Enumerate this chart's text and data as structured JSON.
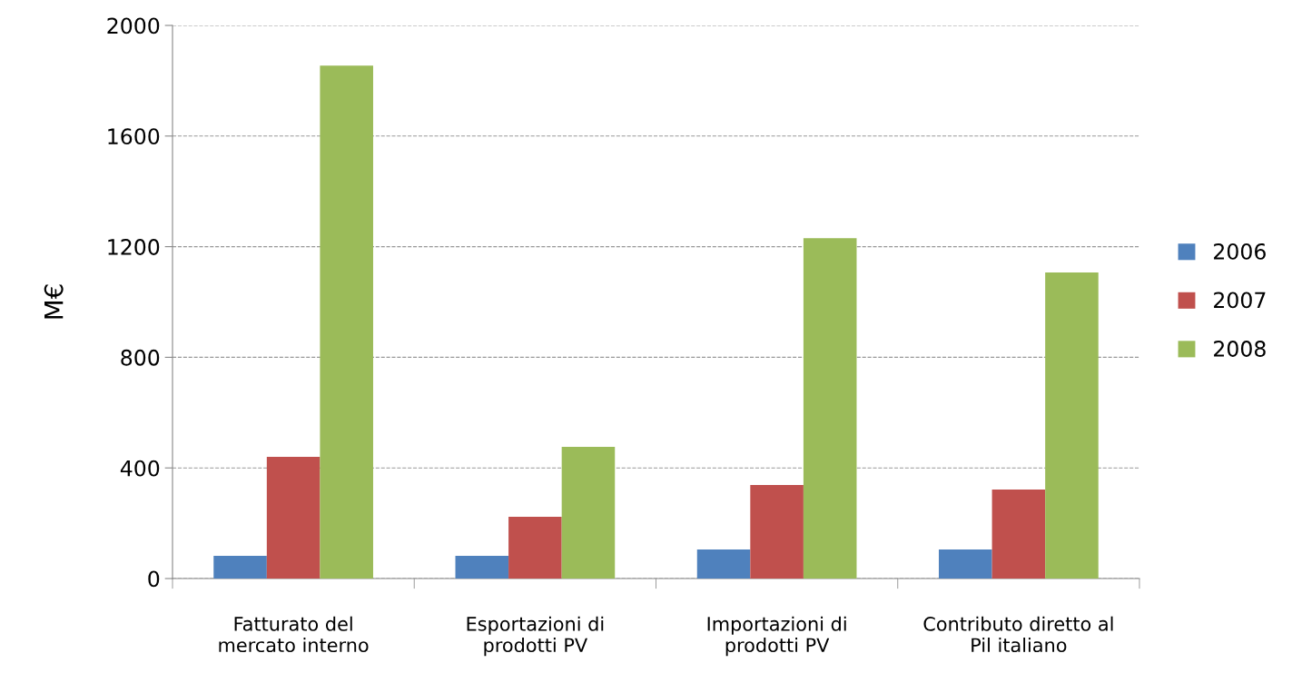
{
  "chart_data": {
    "type": "bar",
    "ylabel": "M€",
    "categories": [
      "Fatturato del\nmercato interno",
      "Esportazioni di\nprodotti PV",
      "Importazioni di\nprodotti PV",
      "Contributo diretto al\nPil italiano"
    ],
    "series": [
      {
        "name": "2006",
        "color": "#4f81bd",
        "values": [
          82,
          82,
          105,
          105
        ]
      },
      {
        "name": "2007",
        "color": "#c0504d",
        "values": [
          440,
          223,
          338,
          322
        ]
      },
      {
        "name": "2008",
        "color": "#9bbb59",
        "values": [
          1855,
          476,
          1231,
          1107
        ]
      }
    ],
    "ylim": [
      0,
      2000
    ],
    "yticks": [
      0,
      400,
      800,
      1200,
      1600,
      2000
    ],
    "grid": "y",
    "legend": "right"
  }
}
